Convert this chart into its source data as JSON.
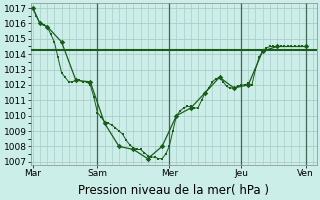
{
  "bg_color": "#cceee8",
  "grid_color": "#aacccc",
  "line_color": "#1a5c1a",
  "flat_line_color": "#1a5c1a",
  "ylim": [
    1006.8,
    1017.3
  ],
  "yticks": [
    1007,
    1008,
    1009,
    1010,
    1011,
    1012,
    1013,
    1014,
    1015,
    1016,
    1017
  ],
  "xlabel": "Pression niveau de la mer( hPa )",
  "xlabel_fontsize": 8.5,
  "tick_fontsize": 6.5,
  "flat_line_y": 1014.3,
  "series1_x": [
    0,
    0.5,
    1,
    1.5,
    2,
    2.5,
    3,
    3.5,
    4,
    4.5,
    5,
    5.5,
    6,
    6.5,
    7,
    7.5,
    8,
    8.5,
    9,
    9.5,
    10,
    10.5,
    11,
    11.5,
    12,
    12.5,
    13,
    13.5,
    14,
    14.5,
    15,
    15.5,
    16,
    16.5,
    17,
    17.5,
    18,
    18.5,
    19,
    19.5,
    20,
    20.5,
    21,
    21.5,
    22,
    22.5,
    23,
    23.5,
    24,
    24.5,
    25,
    25.5,
    26,
    26.5,
    27,
    27.5,
    28,
    28.5,
    29,
    29.5,
    30,
    30.5,
    31,
    31.5,
    32,
    32.5,
    33,
    33.5,
    34,
    34.5,
    35,
    35.5,
    36,
    36.5,
    37,
    37.5,
    38
  ],
  "series1_y": [
    1017.0,
    1016.5,
    1016.0,
    1015.9,
    1015.8,
    1015.3,
    1014.8,
    1013.8,
    1012.8,
    1012.5,
    1012.2,
    1012.2,
    1012.3,
    1012.3,
    1012.2,
    1012.2,
    1012.0,
    1011.2,
    1010.2,
    1009.9,
    1009.6,
    1009.5,
    1009.4,
    1009.2,
    1009.0,
    1008.8,
    1008.4,
    1008.1,
    1007.9,
    1007.8,
    1007.8,
    1007.6,
    1007.4,
    1007.3,
    1007.3,
    1007.2,
    1007.2,
    1007.5,
    1008.0,
    1009.0,
    1010.0,
    1010.3,
    1010.5,
    1010.6,
    1010.6,
    1010.5,
    1010.5,
    1011.0,
    1011.5,
    1011.8,
    1012.2,
    1012.4,
    1012.5,
    1012.2,
    1011.9,
    1011.8,
    1011.8,
    1011.9,
    1012.0,
    1012.0,
    1012.1,
    1012.0,
    1013.0,
    1013.8,
    1014.2,
    1014.4,
    1014.5,
    1014.5,
    1014.5,
    1014.5,
    1014.5,
    1014.5,
    1014.5,
    1014.5,
    1014.5,
    1014.5,
    1014.5
  ],
  "series2_x": [
    0,
    1,
    2,
    4,
    6,
    8,
    10,
    12,
    14,
    16,
    18,
    20,
    22,
    24,
    26,
    28,
    30,
    32,
    34,
    38
  ],
  "series2_y": [
    1017.0,
    1016.0,
    1015.8,
    1014.8,
    1012.3,
    1012.2,
    1009.5,
    1008.0,
    1007.8,
    1007.2,
    1008.0,
    1010.0,
    1010.5,
    1011.5,
    1012.5,
    1011.8,
    1012.0,
    1014.2,
    1014.5,
    1014.5
  ],
  "vlines_x": [
    9,
    19,
    29,
    38
  ],
  "xtick_labels": [
    "Mar",
    "Sam",
    "Mer",
    "Jeu",
    "Ven"
  ],
  "xtick_positions": [
    0,
    9,
    19,
    29,
    38
  ],
  "xlim": [
    -0.3,
    39.5
  ]
}
